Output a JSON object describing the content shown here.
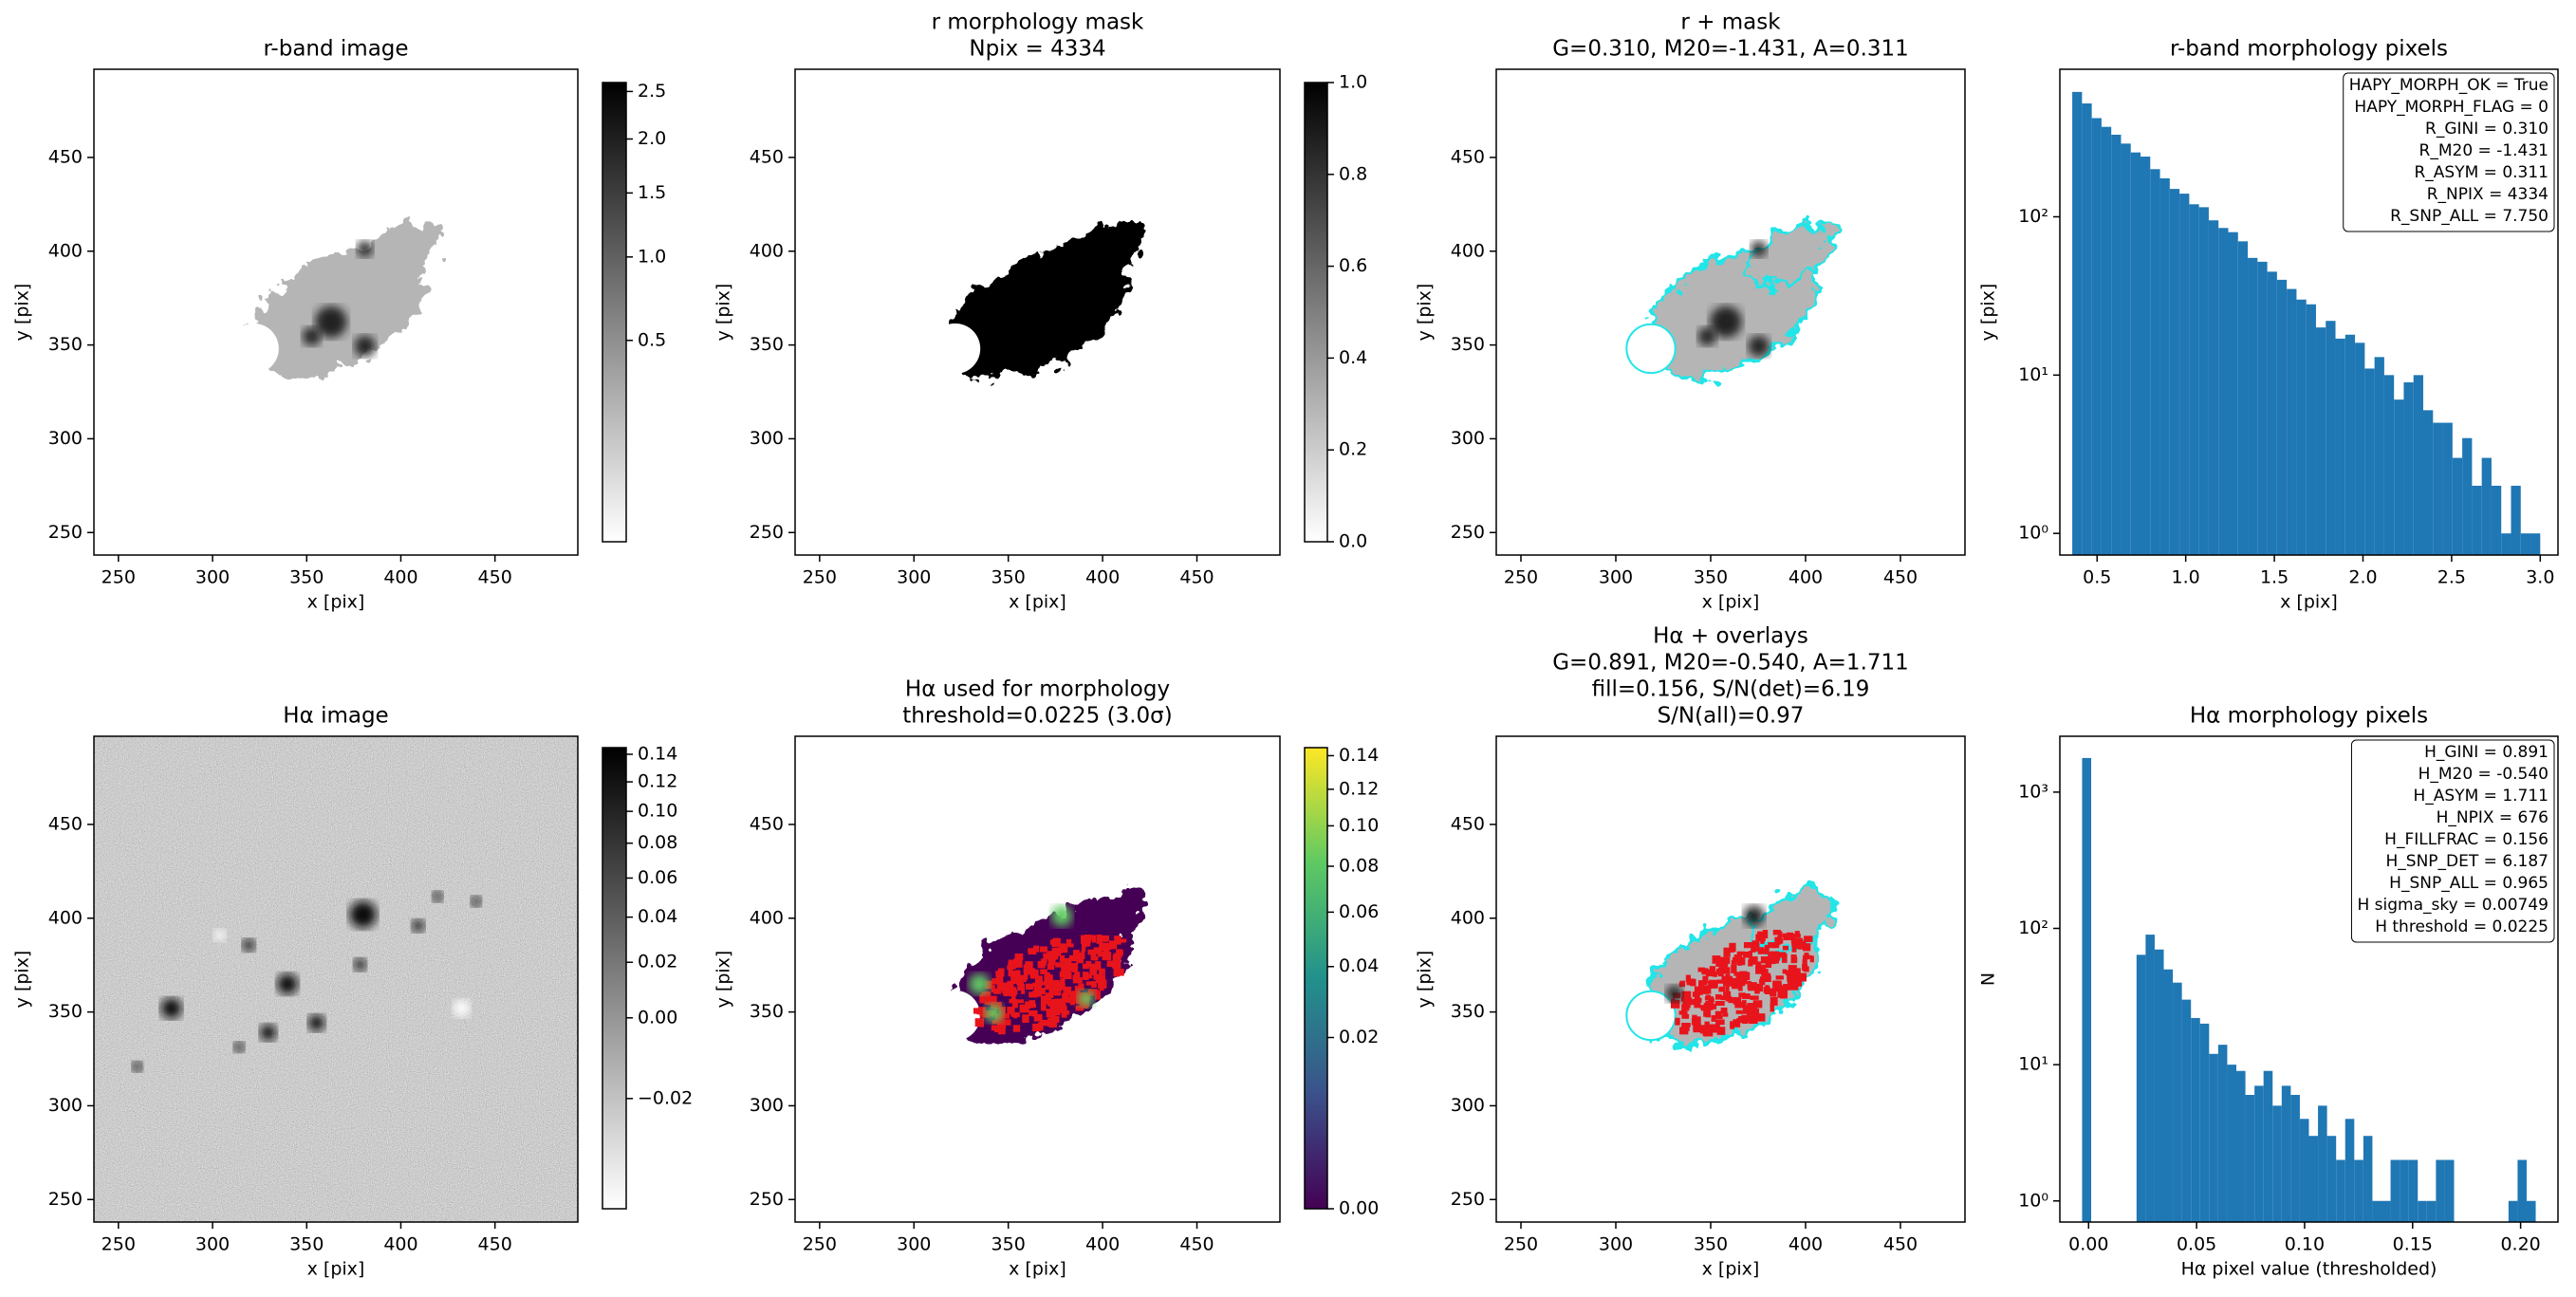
{
  "chart_data": [
    {
      "type": "image",
      "title": "r-band image",
      "xlabel": "x [pix]",
      "ylabel": "y [pix]",
      "xlim": [
        237,
        494
      ],
      "ylim": [
        238,
        497
      ],
      "xticks": [
        250,
        300,
        350,
        400,
        450
      ],
      "yticks": [
        250,
        300,
        350,
        400,
        450
      ],
      "colorbar": {
        "cmap": "gray_r",
        "scale": "sqrt",
        "clim": [
          0,
          2.6
        ],
        "ticks": [
          0.5,
          {
            "value": 1,
            "label": "1.0"
          },
          1.5,
          {
            "value": 2,
            "label": "2.0"
          },
          2.5
        ]
      }
    },
    {
      "type": "image",
      "title": [
        "r morphology mask",
        "Npix = 4334"
      ],
      "xlabel": "x [pix]",
      "ylabel": "y [pix]",
      "xlim": [
        237,
        494
      ],
      "ylim": [
        238,
        497
      ],
      "xticks": [
        250,
        300,
        350,
        400,
        450
      ],
      "yticks": [
        250,
        300,
        350,
        400,
        450
      ],
      "colorbar": {
        "cmap": "gray_r",
        "scale": "linear",
        "clim": [
          0,
          1
        ],
        "ticks": [
          {
            "value": 0,
            "label": "0.0"
          },
          0.2,
          0.4,
          0.6,
          0.8,
          {
            "value": 1,
            "label": "1.0"
          }
        ]
      }
    },
    {
      "type": "image",
      "title": [
        "r + mask",
        "G=0.310, M20=-1.431, A=0.311"
      ],
      "xlabel": "x [pix]",
      "ylabel": "y [pix]",
      "xlim": [
        237,
        484
      ],
      "ylim": [
        238,
        497
      ],
      "xticks": [
        250,
        300,
        350,
        400,
        450
      ],
      "yticks": [
        250,
        300,
        350,
        400,
        450
      ]
    },
    {
      "type": "histogram",
      "title": "r-band morphology pixels",
      "xlabel": "x [pix]",
      "ylabel": "y [pix]",
      "color": "#1f77b4",
      "ylog": true,
      "bins": [
        0.36,
        0.415,
        0.47,
        0.525,
        0.58,
        0.635,
        0.69,
        0.745,
        0.8,
        0.855,
        0.91,
        0.965,
        1.02,
        1.075,
        1.13,
        1.185,
        1.24,
        1.295,
        1.35,
        1.405,
        1.46,
        1.515,
        1.57,
        1.625,
        1.68,
        1.735,
        1.79,
        1.845,
        1.9,
        1.955,
        2.01,
        2.065,
        2.12,
        2.175,
        2.23,
        2.285,
        2.34,
        2.395,
        2.45,
        2.505,
        2.56,
        2.615,
        2.67,
        2.725,
        2.78,
        2.835,
        2.89,
        2.945,
        3.0
      ],
      "values": [
        615,
        520,
        420,
        370,
        330,
        290,
        255,
        240,
        200,
        175,
        150,
        140,
        120,
        115,
        95,
        85,
        80,
        70,
        55,
        52,
        45,
        40,
        35,
        30,
        28,
        20,
        22,
        17,
        18,
        16,
        11,
        13,
        10,
        7,
        9,
        10,
        6,
        5,
        5,
        3,
        4,
        2,
        3,
        2,
        1,
        2,
        1,
        1
      ],
      "xlim": [
        0.29,
        3.1
      ],
      "ylim": [
        0.73,
        855
      ],
      "xticks": [
        0.5,
        {
          "value": 1,
          "label": "1.0"
        },
        1.5,
        {
          "value": 2,
          "label": "2.0"
        },
        2.5,
        {
          "value": 3,
          "label": "3.0"
        }
      ],
      "yticks": [
        {
          "value": 1,
          "label": "10⁰"
        },
        {
          "value": 10,
          "label": "10¹"
        },
        {
          "value": 100,
          "label": "10²"
        }
      ],
      "annotation": [
        "HAPY_MORPH_OK = True",
        "HAPY_MORPH_FLAG = 0",
        "R_GINI = 0.310",
        "R_M20 = -1.431",
        "R_ASYM = 0.311",
        "R_NPIX = 4334",
        "R_SNP_ALL = 7.750"
      ]
    },
    {
      "type": "image",
      "title": "Hα image",
      "xlabel": "x [pix]",
      "ylabel": "y [pix]",
      "xlim": [
        237,
        494
      ],
      "ylim": [
        238,
        497
      ],
      "xticks": [
        250,
        300,
        350,
        400,
        450
      ],
      "yticks": [
        250,
        300,
        350,
        400,
        450
      ],
      "colorbar": {
        "cmap": "gray_r",
        "scale": "sqrt",
        "clim": [
          -0.03,
          0.145
        ],
        "ticks": [
          {
            "value": -0.02,
            "label": "−0.02"
          },
          {
            "value": 0,
            "label": "0.00"
          },
          0.02,
          0.04,
          0.06,
          0.08,
          {
            "value": 0.1,
            "label": "0.10"
          },
          0.12,
          0.14
        ]
      }
    },
    {
      "type": "image",
      "title": [
        "Hα used for morphology",
        "threshold=0.0225 (3.0σ)"
      ],
      "xlabel": "x [pix]",
      "ylabel": "y [pix]",
      "xlim": [
        237,
        494
      ],
      "ylim": [
        238,
        497
      ],
      "xticks": [
        250,
        300,
        350,
        400,
        450
      ],
      "yticks": [
        250,
        300,
        350,
        400,
        450
      ],
      "colorbar": {
        "cmap": "viridis",
        "scale": "sqrt",
        "clim": [
          0,
          0.145
        ],
        "ticks": [
          {
            "value": 0,
            "label": "0.00"
          },
          0.02,
          0.04,
          0.06,
          0.08,
          {
            "value": 0.1,
            "label": "0.10"
          },
          0.12,
          0.14
        ]
      }
    },
    {
      "type": "image",
      "title": [
        "Hα + overlays",
        "G=0.891, M20=-0.540, A=1.711",
        "fill=0.156, S/N(det)=6.19",
        "S/N(all)=0.97"
      ],
      "xlabel": "x [pix]",
      "ylabel": "y [pix]",
      "xlim": [
        237,
        484
      ],
      "ylim": [
        238,
        497
      ],
      "xticks": [
        250,
        300,
        350,
        400,
        450
      ],
      "yticks": [
        250,
        300,
        350,
        400,
        450
      ]
    },
    {
      "type": "histogram",
      "title": "Hα morphology pixels",
      "xlabel": "Hα pixel value (thresholded)",
      "ylabel": "N",
      "color": "#1f77b4",
      "ylog": true,
      "bins": [
        -0.003,
        0.0012,
        0.0054,
        0.0096,
        0.0138,
        0.018,
        0.0222,
        0.0264,
        0.0306,
        0.0348,
        0.039,
        0.0432,
        0.0474,
        0.0516,
        0.0558,
        0.06,
        0.0642,
        0.0684,
        0.0726,
        0.0768,
        0.081,
        0.0852,
        0.0894,
        0.0936,
        0.0978,
        0.102,
        0.1062,
        0.1104,
        0.1146,
        0.1188,
        0.123,
        0.1272,
        0.1314,
        0.1356,
        0.1398,
        0.144,
        0.1482,
        0.1524,
        0.1566,
        0.1608,
        0.165,
        0.1692,
        0.1734,
        0.1776,
        0.1818,
        0.186,
        0.1902,
        0.1944,
        0.1986,
        0.2028,
        0.207
      ],
      "values": [
        1780,
        0,
        0,
        0,
        0,
        0,
        64,
        90,
        70,
        50,
        40,
        30,
        22,
        20,
        12,
        14,
        10,
        9,
        6,
        7,
        9,
        5,
        7,
        6,
        4,
        3,
        5,
        3,
        2,
        4,
        2,
        3,
        1,
        1,
        2,
        2,
        2,
        1,
        1,
        2,
        2,
        0,
        0,
        0,
        0,
        0,
        0,
        1,
        2,
        1
      ],
      "xlim": [
        -0.0133,
        0.2173
      ],
      "ylim": [
        0.7,
        2570
      ],
      "xticks": [
        {
          "value": 0,
          "label": "0.00"
        },
        0.05,
        {
          "value": 0.1,
          "label": "0.10"
        },
        0.15,
        {
          "value": 0.2,
          "label": "0.20"
        }
      ],
      "yticks": [
        {
          "value": 1,
          "label": "10⁰"
        },
        {
          "value": 10,
          "label": "10¹"
        },
        {
          "value": 100,
          "label": "10²"
        },
        {
          "value": 1000,
          "label": "10³"
        }
      ],
      "annotation": [
        "H_GINI = 0.891",
        "H_M20 = -0.540",
        "H_ASYM = 1.711",
        "H_NPIX = 676",
        "H_FILLFRAC = 0.156",
        "H_SNP_DET = 6.187",
        "H_SNP_ALL = 0.965",
        "H sigma_sky = 0.00749",
        "H threshold = 0.0225"
      ]
    }
  ]
}
